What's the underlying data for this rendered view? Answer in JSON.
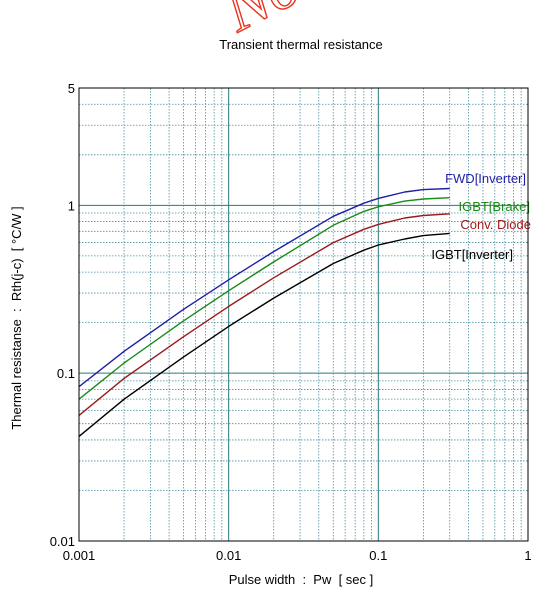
{
  "watermark": "Not recommended for new design",
  "chart_data": {
    "type": "line",
    "title": "Transient thermal resistance",
    "xlabel": "Pulse width  :  Pw  [ sec ]",
    "ylabel": "Thermal resistanse  :  Rth(j-c)  [ °C/W ]",
    "xscale": "log",
    "yscale": "log",
    "xlim": [
      0.001,
      1
    ],
    "ylim": [
      0.01,
      5
    ],
    "xticks": [
      "0.001",
      "0.01",
      "0.1",
      "1"
    ],
    "yticks": [
      "0.01",
      "0.1",
      "1",
      "5"
    ],
    "grid": true,
    "series": [
      {
        "name": "FWD[Inverter]",
        "color": "#1f1fa6",
        "x": [
          0.001,
          0.002,
          0.005,
          0.01,
          0.02,
          0.05,
          0.08,
          0.1,
          0.15,
          0.2,
          0.3
        ],
        "y": [
          0.083,
          0.135,
          0.24,
          0.36,
          0.53,
          0.86,
          1.03,
          1.1,
          1.2,
          1.24,
          1.26
        ]
      },
      {
        "name": "IGBT[Brake]",
        "color": "#1a8a1a",
        "x": [
          0.001,
          0.002,
          0.005,
          0.01,
          0.02,
          0.05,
          0.08,
          0.1,
          0.15,
          0.2,
          0.3
        ],
        "y": [
          0.07,
          0.115,
          0.205,
          0.31,
          0.46,
          0.76,
          0.92,
          0.98,
          1.06,
          1.09,
          1.11
        ]
      },
      {
        "name": "Conv. Diode",
        "color": "#9a1a1a",
        "x": [
          0.001,
          0.002,
          0.005,
          0.01,
          0.02,
          0.05,
          0.08,
          0.1,
          0.15,
          0.2,
          0.3
        ],
        "y": [
          0.056,
          0.093,
          0.165,
          0.25,
          0.37,
          0.6,
          0.72,
          0.77,
          0.84,
          0.87,
          0.89
        ]
      },
      {
        "name": "IGBT[Inverter]",
        "color": "#000000",
        "x": [
          0.001,
          0.002,
          0.005,
          0.01,
          0.02,
          0.05,
          0.08,
          0.1,
          0.15,
          0.2,
          0.3
        ],
        "y": [
          0.042,
          0.07,
          0.125,
          0.19,
          0.28,
          0.45,
          0.54,
          0.58,
          0.63,
          0.66,
          0.68
        ]
      }
    ]
  }
}
